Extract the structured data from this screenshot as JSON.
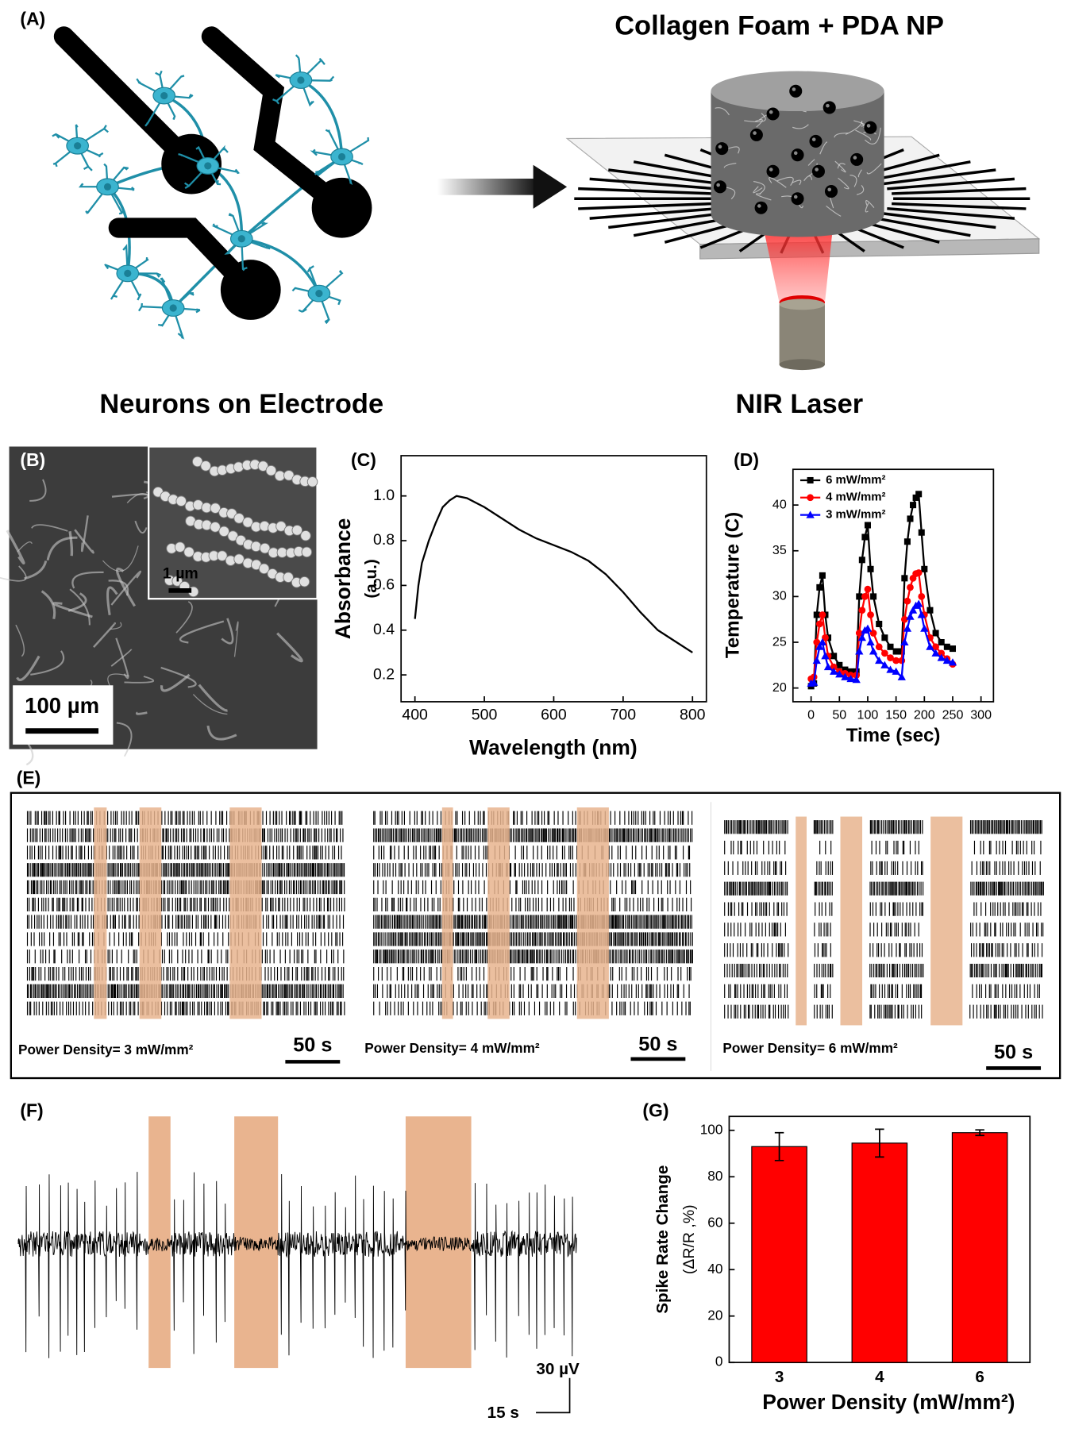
{
  "panel_labels": [
    "(A)",
    "(B)",
    "(C)",
    "(D)",
    "(E)",
    "(F)",
    "(G)"
  ],
  "panel_a": {
    "title": "Collagen Foam + PDA NP",
    "left_caption": "Neurons on Electrode",
    "right_caption": "NIR Laser"
  },
  "panel_b": {
    "inset_scale": "1 µm",
    "scale": "100 µm"
  },
  "panel_e": {
    "rasters": [
      {
        "label": "Power Density= 3 mW/mm²",
        "scale": "50 s"
      },
      {
        "label": "Power Density= 4 mW/mm²",
        "scale": "50 s"
      },
      {
        "label": "Power Density= 6 mW/mm²",
        "scale": "50 s"
      }
    ]
  },
  "panel_f": {
    "scale_y": "30 µV",
    "scale_x": "15 s"
  },
  "chart_data": [
    {
      "type": "line",
      "xlabel": "Wavelength (nm)",
      "ylabel": [
        "Absorbance",
        "(a.u.)"
      ],
      "color": "#000000",
      "x": [
        400,
        405,
        410,
        420,
        430,
        440,
        450,
        460,
        475,
        500,
        525,
        550,
        575,
        600,
        625,
        650,
        675,
        700,
        725,
        750,
        775,
        800
      ],
      "values": [
        0.45,
        0.6,
        0.7,
        0.8,
        0.88,
        0.95,
        0.98,
        1.0,
        0.99,
        0.95,
        0.9,
        0.85,
        0.81,
        0.78,
        0.75,
        0.71,
        0.65,
        0.57,
        0.48,
        0.4,
        0.35,
        0.3
      ],
      "xlim": [
        380,
        820
      ],
      "ylim": [
        0.08,
        1.18
      ],
      "xticks": [
        400,
        500,
        600,
        700,
        800
      ],
      "yticks": [
        0.2,
        0.4,
        0.6,
        0.8,
        {
          "value": 1,
          "label": "1.0"
        }
      ]
    },
    {
      "type": "line",
      "xlabel": "Time (sec)",
      "ylabel": [
        "Temperature (C)"
      ],
      "x": [
        0,
        5,
        10,
        15,
        20,
        25,
        30,
        40,
        50,
        60,
        70,
        80,
        85,
        90,
        95,
        100,
        105,
        110,
        120,
        130,
        140,
        150,
        160,
        165,
        170,
        175,
        180,
        185,
        190,
        195,
        200,
        210,
        220,
        230,
        240,
        250
      ],
      "series": [
        {
          "name": "6 mW/mm²",
          "color": "#000000",
          "marker": "square",
          "values": [
            20.2,
            20.5,
            28,
            31,
            32.3,
            28,
            25.5,
            23.5,
            22.5,
            22,
            21.8,
            21.8,
            30,
            34,
            36.5,
            37.8,
            33,
            30,
            27,
            25.5,
            24.5,
            24,
            24,
            32,
            36,
            38.5,
            40,
            40.8,
            41.2,
            37,
            33,
            28.5,
            26,
            25,
            24.5,
            24.3
          ]
        },
        {
          "name": "4 mW/mm²",
          "color": "#ff0000",
          "marker": "circle",
          "values": [
            21,
            21.2,
            25,
            27,
            28,
            25.5,
            23.5,
            22.3,
            21.8,
            21.6,
            21.4,
            21.4,
            26,
            28.5,
            30,
            30.8,
            28,
            26,
            24.5,
            23.8,
            23.3,
            23,
            23,
            27.5,
            29.5,
            31,
            32,
            32.5,
            32.6,
            30,
            28,
            25.5,
            24.5,
            23.8,
            23.2,
            22.6
          ]
        },
        {
          "name": "3 mW/mm²",
          "color": "#0000ff",
          "marker": "triangle",
          "values": [
            20.5,
            20.6,
            23,
            24.5,
            25,
            23.5,
            22.3,
            21.8,
            21.5,
            21.2,
            21,
            20.9,
            24,
            25.5,
            26.3,
            26.5,
            25,
            24,
            23,
            22.5,
            22,
            21.8,
            21.2,
            25,
            26.5,
            27.8,
            28.5,
            29,
            29.2,
            28,
            26.5,
            24.5,
            23.8,
            23.3,
            23,
            22.8
          ]
        }
      ],
      "xlim": [
        -32,
        322
      ],
      "ylim": [
        18.5,
        43.9
      ],
      "xticks": [
        0,
        50,
        100,
        150,
        200,
        250,
        300
      ],
      "yticks": [
        20,
        25,
        30,
        35,
        40
      ],
      "legend": "upper-left"
    },
    {
      "type": "bar",
      "xlabel": "Power Density (mW/mm²)",
      "ylabel": [
        "Spike Rate Change",
        "(ΔR/R ,%)"
      ],
      "categories": [
        "3",
        "4",
        "6"
      ],
      "values": [
        93,
        94.5,
        99
      ],
      "errors": [
        6,
        6,
        1.2
      ],
      "color": "#ff0000",
      "ylim": [
        0,
        106
      ],
      "yticks": [
        0,
        20,
        40,
        60,
        80,
        100
      ]
    }
  ]
}
